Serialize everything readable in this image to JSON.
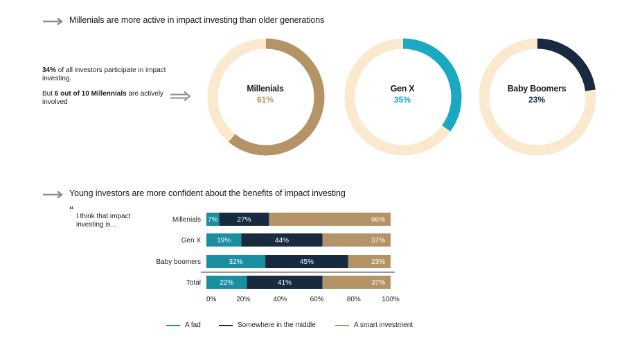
{
  "colors": {
    "fad": "#1a8fa0",
    "middle": "#172a40",
    "smart": "#b49366",
    "track": "#fbe9cf",
    "genx_ring": "#1aa9c2",
    "millenials_pct": "#b49366",
    "genx_pct": "#1aa9c2",
    "boomers_pct": "#172a40",
    "arrow": "#8c8c8c"
  },
  "section1": {
    "heading": "Millenials are more active in impact investing than older generations",
    "intro_pct": "34%",
    "intro_rest": " of all investors participate in impact investing.",
    "intro_but": "But ",
    "intro_bold": "6 out of 10 Millennials",
    "intro_tail": " are actively involved"
  },
  "section2": {
    "heading": "Young investors are more confident about the benefits of impact investing",
    "quote_mark": "“",
    "quote_text": "I think that impact investing is..."
  },
  "chart_data": [
    {
      "type": "pie",
      "title": "",
      "donuts": [
        {
          "label": "Millenials",
          "value": 61,
          "value_label": "61%"
        },
        {
          "label": "Gen X",
          "value": 35,
          "value_label": "35%"
        },
        {
          "label": "Baby Boomers",
          "value": 23,
          "value_label": "23%"
        }
      ]
    },
    {
      "type": "bar",
      "orientation": "horizontal",
      "stacked": true,
      "categories": [
        "Millenials",
        "Gen X",
        "Baby boomers",
        "Total"
      ],
      "series": [
        {
          "name": "A fad",
          "values": [
            7,
            19,
            32,
            22
          ],
          "labels": [
            "7%",
            "19%",
            "32%",
            "22%"
          ]
        },
        {
          "name": "Somewhere in the middle",
          "values": [
            27,
            44,
            45,
            41
          ],
          "labels": [
            "27%",
            "44%",
            "45%",
            "41%"
          ]
        },
        {
          "name": "A smart investment",
          "values": [
            66,
            37,
            23,
            37
          ],
          "labels": [
            "66%",
            "37%",
            "23%",
            "37%"
          ]
        }
      ],
      "xlim": [
        0,
        100
      ],
      "xticks": [
        "0%",
        "20%",
        "40%",
        "60%",
        "80%",
        "100%"
      ],
      "legend_position": "bottom"
    }
  ]
}
